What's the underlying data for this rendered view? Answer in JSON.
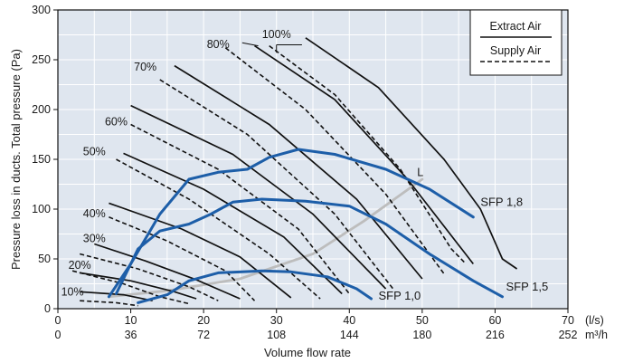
{
  "chart_data": {
    "type": "line",
    "xlabel": "Volume flow rate",
    "ylabel": "Pressure loss in ducts. Total pressure (Pa)",
    "xlim": [
      0,
      70
    ],
    "ylim": [
      0,
      300
    ],
    "x_ticks": [
      0,
      10,
      20,
      30,
      40,
      50,
      60,
      70
    ],
    "x_ticks_m3h": [
      "0",
      "36",
      "72",
      "108",
      "144",
      "180",
      "216",
      "252"
    ],
    "x_unit_primary": "(l/s)",
    "x_unit_secondary": "m³/h",
    "y_ticks": [
      0,
      50,
      100,
      150,
      200,
      250,
      300
    ],
    "grid": true,
    "legend": {
      "position": "top-right",
      "entries": [
        {
          "name": "Extract Air",
          "style": "solid",
          "color": "#111111"
        },
        {
          "name": "Supply Air",
          "style": "dashed",
          "color": "#111111"
        }
      ]
    },
    "colors": {
      "plot_bg": "#dfe6ef",
      "grid": "#ffffff",
      "fan_curve": "#111111",
      "sfp": "#1d5ea8",
      "system_line": "#bdbdbd"
    },
    "speed_labels": [
      "10%",
      "20%",
      "30%",
      "40%",
      "50%",
      "60%",
      "70%",
      "80%",
      "100%"
    ],
    "extract_air": [
      {
        "speed": "10%",
        "points": [
          [
            3,
            17
          ],
          [
            9,
            14
          ],
          [
            13,
            8
          ]
        ]
      },
      {
        "speed": "20%",
        "points": [
          [
            3,
            36
          ],
          [
            10,
            28
          ],
          [
            16,
            17
          ],
          [
            19,
            10
          ]
        ]
      },
      {
        "speed": "30%",
        "points": [
          [
            5,
            65
          ],
          [
            12,
            48
          ],
          [
            19,
            29
          ],
          [
            25,
            10
          ]
        ]
      },
      {
        "speed": "40%",
        "points": [
          [
            7,
            106
          ],
          [
            17,
            80
          ],
          [
            25,
            52
          ],
          [
            32,
            11
          ]
        ]
      },
      {
        "speed": "50%",
        "points": [
          [
            9,
            156
          ],
          [
            20,
            120
          ],
          [
            31,
            72
          ],
          [
            39,
            15
          ]
        ]
      },
      {
        "speed": "60%",
        "points": [
          [
            10,
            204
          ],
          [
            24,
            155
          ],
          [
            35,
            95
          ],
          [
            45,
            20
          ]
        ]
      },
      {
        "speed": "70%",
        "points": [
          [
            16,
            244
          ],
          [
            29,
            185
          ],
          [
            41,
            110
          ],
          [
            50,
            30
          ]
        ]
      },
      {
        "speed": "80%",
        "points": [
          [
            27,
            264
          ],
          [
            38,
            210
          ],
          [
            48,
            130
          ],
          [
            57,
            45
          ]
        ]
      },
      {
        "speed": "100%",
        "points": [
          [
            34,
            272
          ],
          [
            44,
            222
          ],
          [
            53,
            150
          ],
          [
            58,
            100
          ],
          [
            61,
            50
          ],
          [
            63,
            40
          ]
        ]
      }
    ],
    "supply_air": [
      {
        "speed": "10%",
        "points": [
          [
            3,
            8
          ],
          [
            8,
            6
          ],
          [
            11,
            3
          ]
        ]
      },
      {
        "speed": "20%",
        "points": [
          [
            2,
            38
          ],
          [
            9,
            25
          ],
          [
            14,
            12
          ],
          [
            18,
            5
          ]
        ]
      },
      {
        "speed": "30%",
        "points": [
          [
            3,
            55
          ],
          [
            11,
            40
          ],
          [
            18,
            22
          ],
          [
            22,
            8
          ]
        ]
      },
      {
        "speed": "40%",
        "points": [
          [
            7,
            92
          ],
          [
            15,
            68
          ],
          [
            23,
            38
          ],
          [
            27,
            8
          ]
        ]
      },
      {
        "speed": "50%",
        "points": [
          [
            8,
            150
          ],
          [
            18,
            110
          ],
          [
            29,
            55
          ],
          [
            36,
            10
          ]
        ]
      },
      {
        "speed": "60%",
        "points": [
          [
            10,
            185
          ],
          [
            22,
            140
          ],
          [
            33,
            80
          ],
          [
            40,
            15
          ]
        ]
      },
      {
        "speed": "70%",
        "points": [
          [
            14,
            230
          ],
          [
            26,
            175
          ],
          [
            38,
            95
          ],
          [
            46,
            20
          ]
        ]
      },
      {
        "speed": "80%",
        "points": [
          [
            23,
            262
          ],
          [
            34,
            200
          ],
          [
            45,
            115
          ],
          [
            53,
            35
          ]
        ]
      },
      {
        "speed": "100%",
        "points": [
          [
            29,
            264
          ],
          [
            38,
            215
          ],
          [
            47,
            140
          ],
          [
            54,
            60
          ],
          [
            56,
            45
          ]
        ]
      }
    ],
    "sfp_curves": [
      {
        "name": "SFP 1,8",
        "points": [
          [
            7,
            12
          ],
          [
            10,
            45
          ],
          [
            14,
            95
          ],
          [
            18,
            130
          ],
          [
            22,
            137
          ],
          [
            26,
            140
          ],
          [
            29,
            152
          ],
          [
            33,
            160
          ],
          [
            38,
            155
          ],
          [
            45,
            140
          ],
          [
            51,
            120
          ],
          [
            57,
            92
          ]
        ]
      },
      {
        "name": "SFP 1,5",
        "points": [
          [
            8,
            15
          ],
          [
            11,
            60
          ],
          [
            14,
            78
          ],
          [
            18,
            85
          ],
          [
            21,
            95
          ],
          [
            24,
            107
          ],
          [
            28,
            110
          ],
          [
            34,
            108
          ],
          [
            40,
            103
          ],
          [
            45,
            85
          ],
          [
            51,
            55
          ],
          [
            57,
            28
          ],
          [
            61,
            12
          ]
        ]
      },
      {
        "name": "SFP 1,0",
        "points": [
          [
            11,
            6
          ],
          [
            15,
            14
          ],
          [
            18,
            28
          ],
          [
            22,
            36
          ],
          [
            28,
            38
          ],
          [
            32,
            37
          ],
          [
            37,
            32
          ],
          [
            41,
            20
          ],
          [
            43,
            10
          ]
        ]
      }
    ],
    "sfp_labels": [
      "SFP 1,8",
      "SFP 1,5",
      "SFP 1,0"
    ],
    "system_line": {
      "name": "L",
      "label": "L",
      "points": [
        [
          7,
          12
        ],
        [
          15,
          18
        ],
        [
          25,
          30
        ],
        [
          35,
          55
        ],
        [
          42,
          88
        ],
        [
          50,
          130
        ]
      ]
    }
  }
}
